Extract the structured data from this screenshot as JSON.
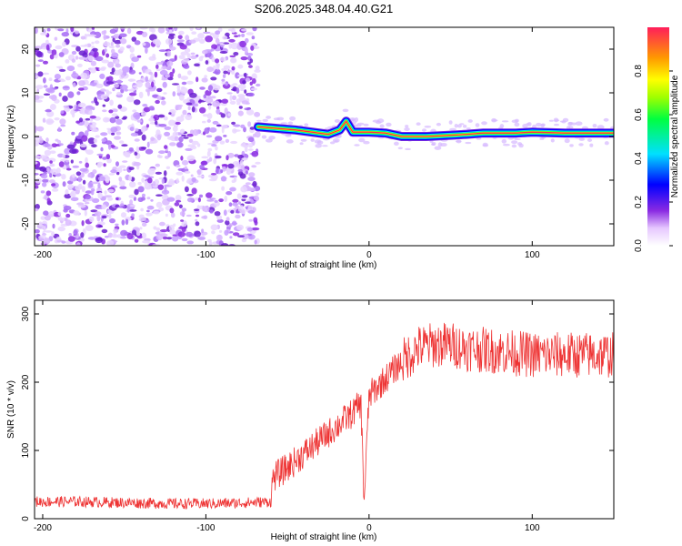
{
  "chart_data": [
    {
      "type": "heatmap",
      "title": "S206.2025.348.04.40.G21",
      "xlabel": "Height of straight line (km)",
      "ylabel": "Frequency (Hz)",
      "xlim": [
        -205,
        150
      ],
      "ylim": [
        -25,
        25
      ],
      "xticks": [
        -200,
        -100,
        0,
        100
      ],
      "yticks": [
        -20,
        -10,
        0,
        10,
        20
      ],
      "noise_region_km": [
        -205,
        -68
      ],
      "signal_ridge": {
        "x": [
          -68,
          -55,
          -45,
          -35,
          -25,
          -18,
          -14,
          -10,
          -5,
          0,
          10,
          20,
          35,
          50,
          60,
          70,
          80,
          90,
          100,
          120,
          150
        ],
        "freq_hz": [
          2.2,
          1.8,
          1.5,
          1.0,
          0.5,
          1.5,
          3.5,
          1.0,
          1.0,
          1.0,
          0.8,
          0.0,
          0.0,
          0.3,
          0.5,
          0.8,
          0.8,
          0.8,
          1.0,
          0.8,
          0.8
        ]
      },
      "colorbar": {
        "label": "Normalized spectral amplitude",
        "range": [
          0,
          1
        ],
        "ticks": [
          "0.0",
          "0.2",
          "0.4",
          "0.6",
          "0.8"
        ]
      }
    },
    {
      "type": "line",
      "xlabel": "Height of straight line (km)",
      "ylabel": "SNR (10 * v/v)",
      "xlim": [
        -205,
        150
      ],
      "ylim": [
        0,
        320
      ],
      "xticks": [
        -200,
        -100,
        0,
        100
      ],
      "yticks": [
        0,
        100,
        200,
        300
      ],
      "series": [
        {
          "name": "SNR",
          "color": "#ee3333",
          "x": [
            -205,
            -180,
            -160,
            -140,
            -120,
            -100,
            -80,
            -60,
            -59,
            -50,
            -40,
            -30,
            -20,
            -10,
            -5,
            -3,
            0,
            10,
            20,
            25,
            30,
            40,
            50,
            60,
            80,
            100,
            120,
            150
          ],
          "values": [
            25,
            25,
            24,
            23,
            22,
            22,
            23,
            25,
            60,
            75,
            95,
            115,
            135,
            155,
            170,
            25,
            180,
            205,
            230,
            240,
            250,
            255,
            255,
            250,
            245,
            240,
            240,
            240
          ]
        }
      ]
    }
  ]
}
